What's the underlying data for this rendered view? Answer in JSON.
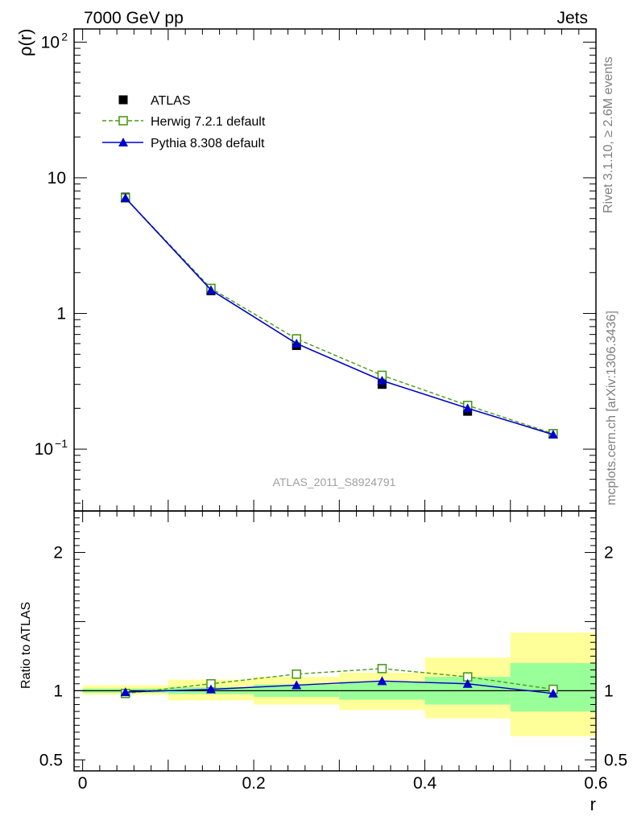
{
  "header": {
    "left": "7000 GeV pp",
    "right": "Jets"
  },
  "side_text": {
    "rivet": "Rivet 3.1.10, ≥ 2.6M events",
    "mcplots": "mcplots.cern.ch [arXiv:1306.3436]"
  },
  "watermark": "ATLAS_2011_S8924791",
  "chart_data": [
    {
      "type": "line",
      "ylabel": "ρ(r)",
      "yscale": "log",
      "ylim": [
        0.035,
        125
      ],
      "xlim": [
        -0.01,
        0.6
      ],
      "yticks": [
        {
          "v": 0.1,
          "base": "10",
          "exp": "−1"
        },
        {
          "v": 1,
          "base": "1",
          "exp": ""
        },
        {
          "v": 10,
          "base": "10",
          "exp": ""
        },
        {
          "v": 100,
          "base": "10",
          "exp": "2"
        }
      ],
      "x": [
        0.05,
        0.15,
        0.25,
        0.35,
        0.45,
        0.55
      ],
      "series": [
        {
          "name": "ATLAS",
          "marker": "square-filled",
          "color": "#000000",
          "values": [
            7.2,
            1.47,
            0.58,
            0.3,
            0.19,
            0.13
          ]
        },
        {
          "name": "Herwig 7.2.1 default",
          "marker": "square-open",
          "line": "dashed",
          "color": "#4a9a1a",
          "values": [
            7.1,
            1.53,
            0.65,
            0.35,
            0.21,
            0.13
          ]
        },
        {
          "name": "Pythia 8.308 default",
          "marker": "triangle-filled",
          "line": "solid",
          "color": "#0000cc",
          "values": [
            7.1,
            1.49,
            0.6,
            0.32,
            0.2,
            0.128
          ]
        }
      ],
      "legend_position": "top-left"
    },
    {
      "type": "line",
      "ylabel": "Ratio to ATLAS",
      "xlabel": "r",
      "ylim": [
        0.42,
        2.3
      ],
      "xlim": [
        -0.01,
        0.6
      ],
      "yticks": [
        0.5,
        1,
        2
      ],
      "xticks": [
        0,
        0.2,
        0.4,
        0.6
      ],
      "x": [
        0.05,
        0.15,
        0.25,
        0.35,
        0.45,
        0.55
      ],
      "bands": {
        "edges": [
          0.0,
          0.1,
          0.2,
          0.3,
          0.4,
          0.5,
          0.6
        ],
        "stat_color": "#99ff99",
        "syst_color": "#ffff99",
        "stat": [
          [
            0.985,
            1.015
          ],
          [
            0.975,
            1.025
          ],
          [
            0.955,
            1.045
          ],
          [
            0.935,
            1.065
          ],
          [
            0.9,
            1.1
          ],
          [
            0.85,
            1.2
          ]
        ],
        "total": [
          [
            0.97,
            1.04
          ],
          [
            0.93,
            1.08
          ],
          [
            0.9,
            1.1
          ],
          [
            0.86,
            1.13
          ],
          [
            0.8,
            1.24
          ],
          [
            0.67,
            1.42
          ]
        ]
      },
      "series": [
        {
          "name": "Herwig 7.2.1 default",
          "values": [
            0.98,
            1.05,
            1.12,
            1.16,
            1.1,
            1.01
          ]
        },
        {
          "name": "Pythia 8.308 default",
          "values": [
            0.99,
            1.01,
            1.04,
            1.07,
            1.05,
            0.98
          ]
        }
      ],
      "reference_line": 1
    }
  ]
}
